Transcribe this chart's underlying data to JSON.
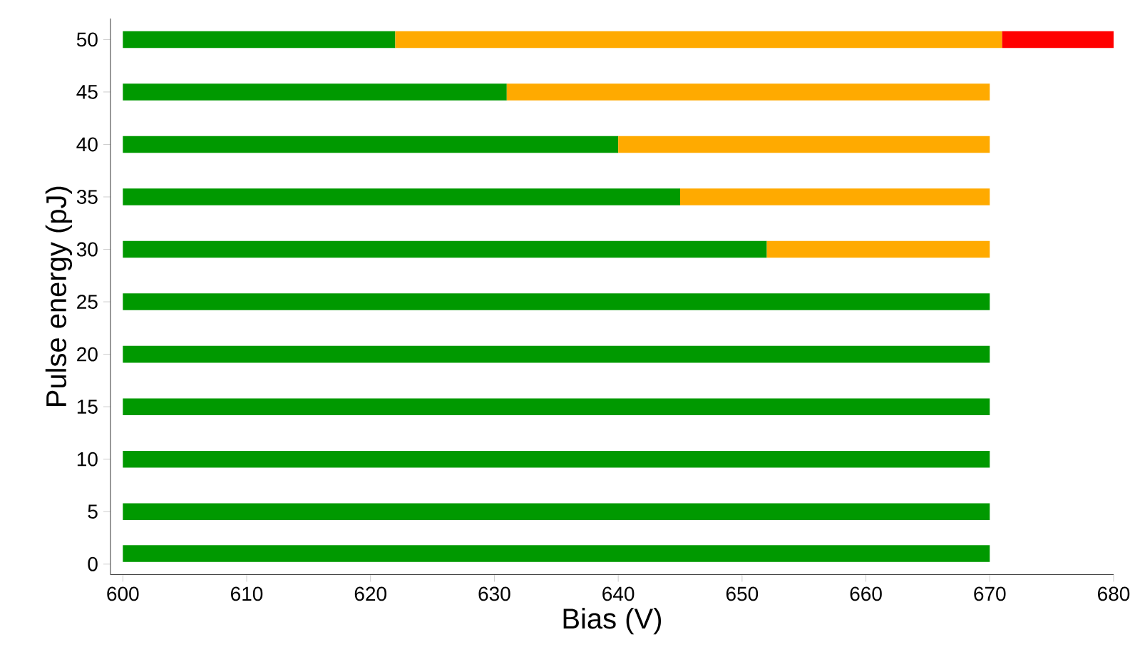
{
  "chart_data": {
    "type": "bar",
    "orientation": "horizontal",
    "xlabel": "Bias (V)",
    "ylabel": "Pulse energy (pJ)",
    "x": [
      1,
      5,
      10,
      15,
      20,
      25,
      30,
      35,
      40,
      45,
      50
    ],
    "series": [
      {
        "color": "#009900",
        "base": [
          600,
          600,
          600,
          600,
          600,
          600,
          600,
          600,
          600,
          600,
          600
        ],
        "values": [
          70,
          70,
          70,
          70,
          70,
          70,
          52,
          45,
          40,
          31,
          22
        ]
      },
      {
        "color": "#ffaa00",
        "base": [
          null,
          null,
          null,
          null,
          null,
          null,
          652,
          645,
          640,
          631,
          622
        ],
        "values": [
          null,
          null,
          null,
          null,
          null,
          null,
          18,
          25,
          30,
          39,
          49
        ]
      },
      {
        "color": "#ff0000",
        "base": [
          null,
          null,
          null,
          null,
          null,
          null,
          null,
          null,
          null,
          null,
          671
        ],
        "values": [
          null,
          null,
          null,
          null,
          null,
          null,
          null,
          null,
          null,
          null,
          9
        ]
      }
    ],
    "xlim": [
      599,
      680
    ],
    "xticks": [
      600,
      610,
      620,
      630,
      640,
      650,
      660,
      670,
      680
    ],
    "ylim": [
      -1,
      52
    ],
    "yticks": [
      0,
      5,
      10,
      15,
      20,
      25,
      30,
      35,
      40,
      45,
      50
    ]
  }
}
